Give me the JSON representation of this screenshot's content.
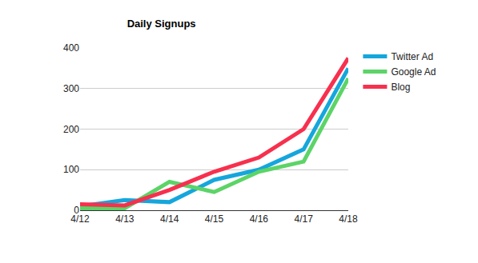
{
  "chart_data": {
    "type": "line",
    "title": "Daily Signups",
    "categories": [
      "4/12",
      "4/13",
      "4/14",
      "4/15",
      "4/16",
      "4/17",
      "4/18"
    ],
    "series": [
      {
        "name": "Twitter Ad",
        "color": "#15a6dc",
        "values": [
          10,
          25,
          20,
          75,
          100,
          150,
          350
        ]
      },
      {
        "name": "Google Ad",
        "color": "#5cd467",
        "values": [
          5,
          5,
          70,
          45,
          95,
          120,
          325
        ]
      },
      {
        "name": "Blog",
        "color": "#f7304e",
        "values": [
          15,
          12,
          50,
          95,
          130,
          200,
          375
        ]
      }
    ],
    "ylim": [
      0,
      400
    ],
    "yticks": [
      0,
      100,
      200,
      300,
      400
    ],
    "grid": true,
    "legend": "right"
  }
}
